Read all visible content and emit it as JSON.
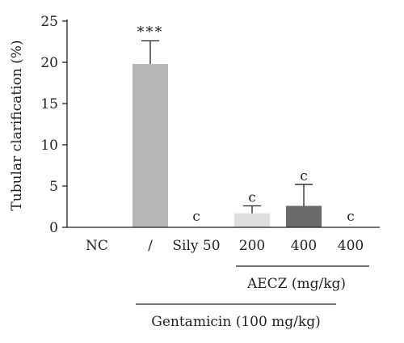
{
  "chart_data": {
    "type": "bar",
    "ylabel": "Tubular clarification (%)",
    "ylim": [
      0,
      25
    ],
    "yticks": [
      0,
      5,
      10,
      15,
      20,
      25
    ],
    "grid": false,
    "categories": [
      "NC",
      "/",
      "Sily 50",
      "200",
      "400",
      "400"
    ],
    "values": [
      0,
      19.8,
      0,
      1.7,
      2.6,
      0
    ],
    "errors": [
      0,
      2.8,
      0,
      0.9,
      2.6,
      0
    ],
    "bar_colors": [
      "#bdbdbd",
      "#b7b7b7",
      "#bdbdbd",
      "#dedede",
      "#6a6a6a",
      "#bdbdbd"
    ],
    "annotations": [
      "",
      "***",
      "c",
      "c",
      "c",
      "c"
    ],
    "groups": [
      {
        "label": "AECZ (mg/kg)",
        "from": 3,
        "to": 5
      },
      {
        "label": "Gentamicin (100 mg/kg)",
        "from": 1,
        "to": 5
      }
    ]
  }
}
